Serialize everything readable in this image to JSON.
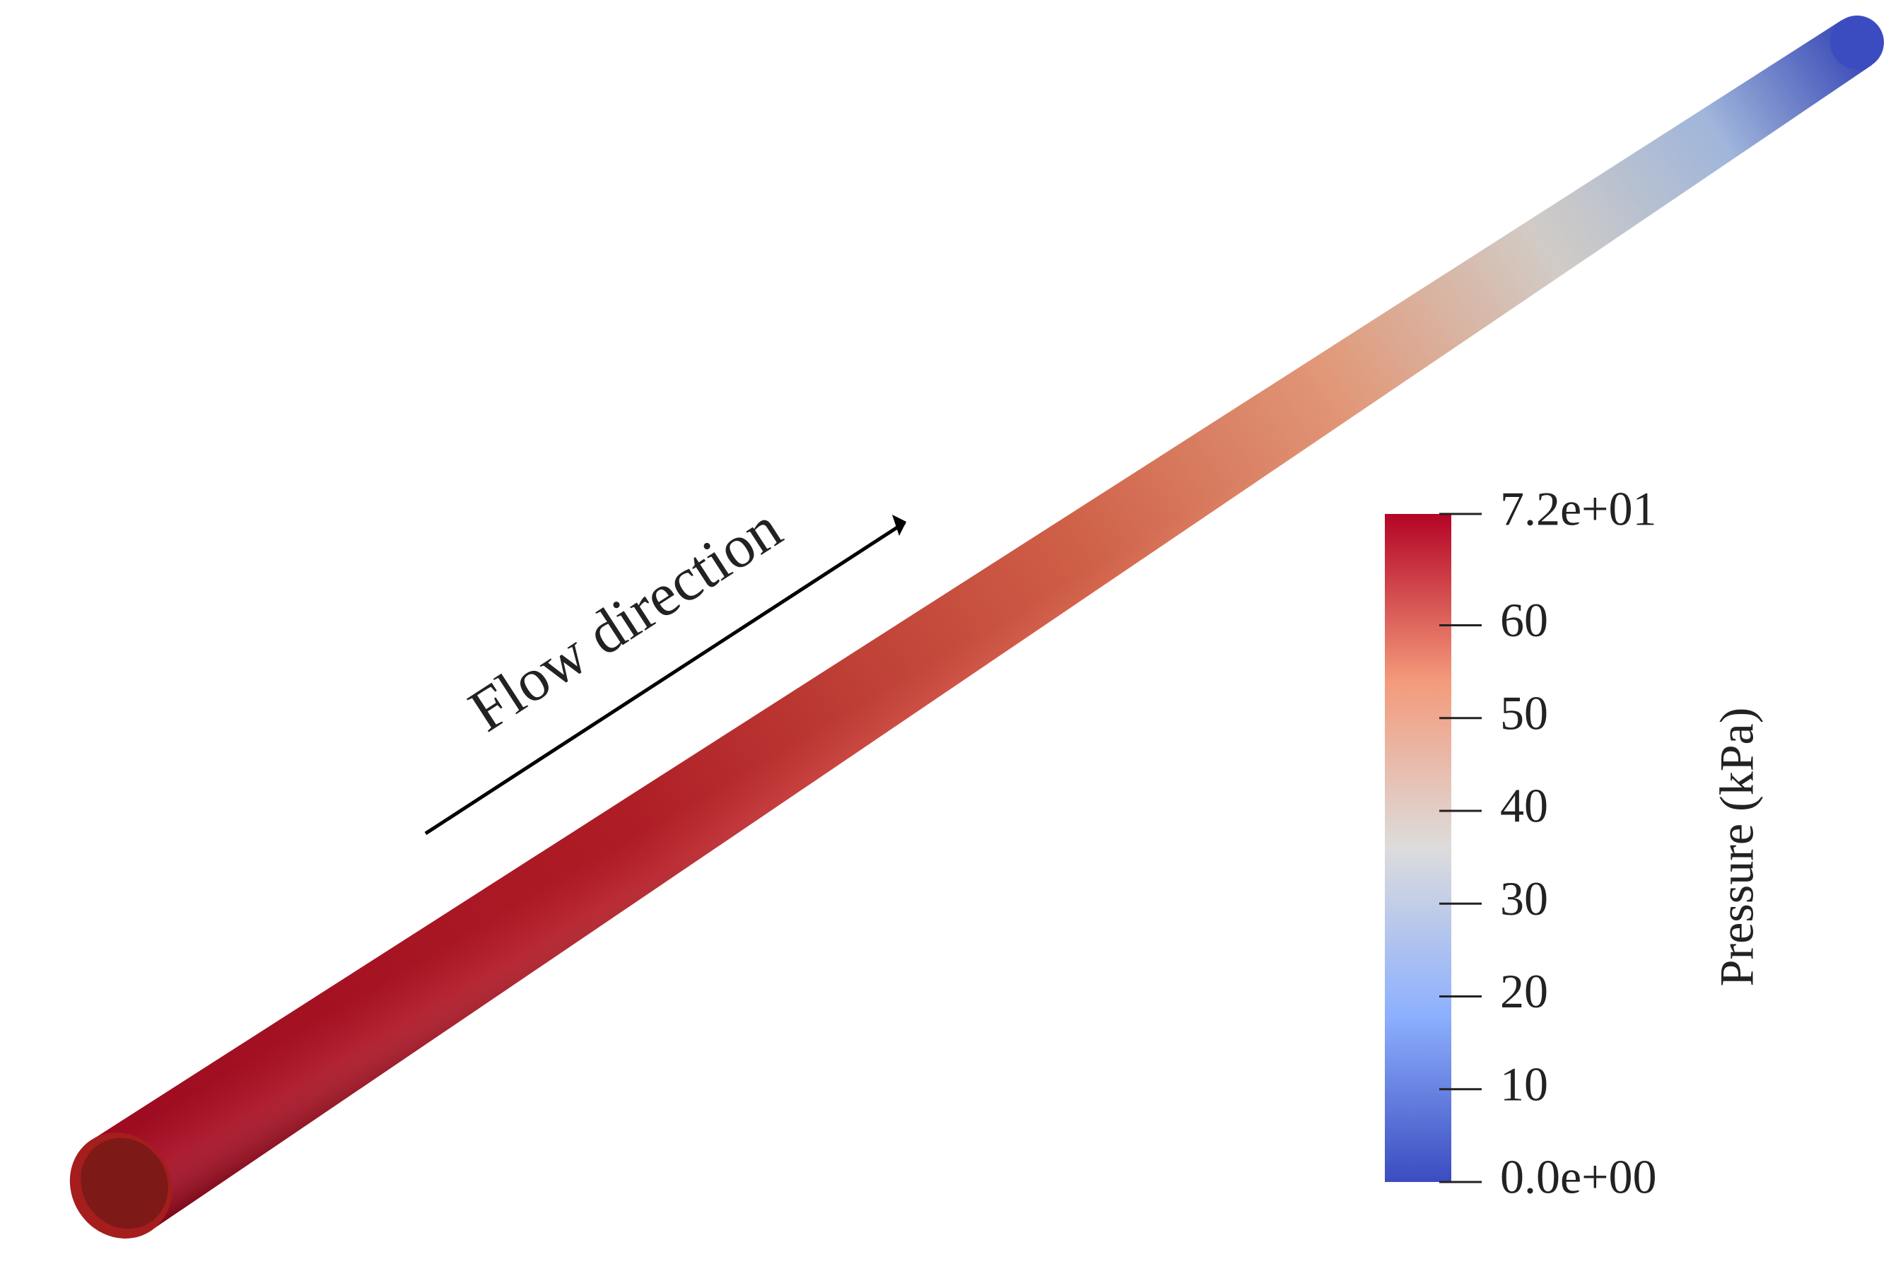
{
  "annotation": "Flow direction",
  "colorbar": {
    "label": "Pressure (kPa)",
    "range": [
      0,
      72
    ],
    "ticks": [
      {
        "value": 0,
        "label": "0.0e+00"
      },
      10,
      20,
      30,
      40,
      50,
      60,
      {
        "value": 72,
        "label": "7.2e+01"
      }
    ]
  }
}
